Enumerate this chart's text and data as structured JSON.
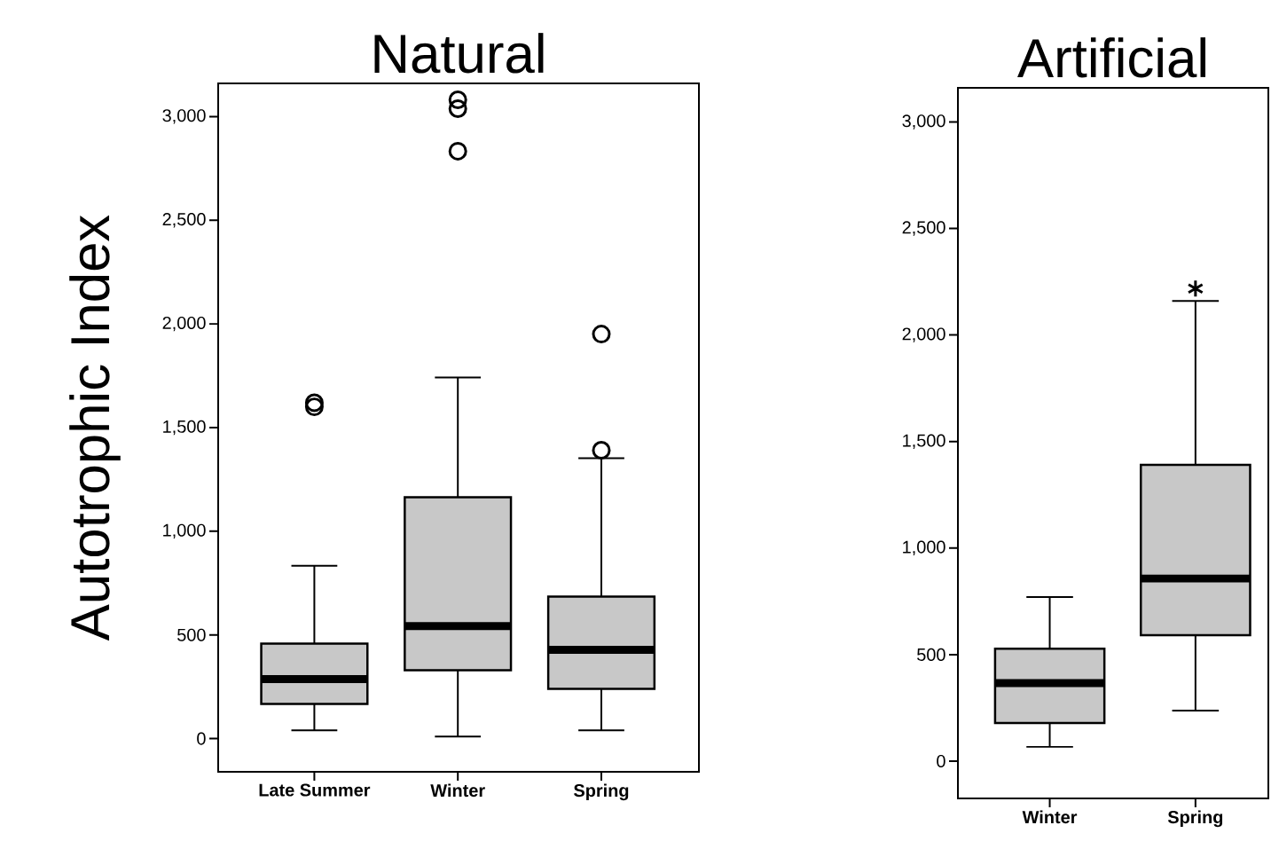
{
  "chart_data": [
    {
      "type": "box",
      "title": "Natural",
      "ylabel": "Autotrophic Index",
      "categories": [
        "Late Summer",
        "Winter",
        "Spring"
      ],
      "color": "#c8c8c8",
      "marker": "circle",
      "ylim": [
        -160,
        3160
      ],
      "yticks": [
        {
          "value": 0,
          "label": "0"
        },
        {
          "value": 500,
          "label": "500"
        },
        {
          "value": 1000,
          "label": "1,000"
        },
        {
          "value": 1500,
          "label": "1,500"
        },
        {
          "value": 2000,
          "label": "2,000"
        },
        {
          "value": 2500,
          "label": "2,500"
        },
        {
          "value": 3000,
          "label": "3,000"
        }
      ],
      "boxes": [
        {
          "low": 40,
          "q1": 167,
          "median": 287,
          "q3": 458,
          "high": 834,
          "outliers": [
            1600,
            1620
          ]
        },
        {
          "low": 10,
          "q1": 330,
          "median": 543,
          "q3": 1164,
          "high": 1742,
          "outliers": [
            2833,
            3038,
            3081
          ]
        },
        {
          "low": 40,
          "q1": 240,
          "median": 428,
          "q3": 685,
          "high": 1352,
          "outliers": [
            1391,
            1951
          ]
        }
      ]
    },
    {
      "type": "box",
      "title": "Artificial",
      "categories": [
        "Winter",
        "Spring"
      ],
      "color": "#c8c8c8",
      "marker": "star",
      "ylim": [
        -175,
        3160
      ],
      "yticks": [
        {
          "value": 0,
          "label": "0"
        },
        {
          "value": 500,
          "label": "500"
        },
        {
          "value": 1000,
          "label": "1,000"
        },
        {
          "value": 1500,
          "label": "1,500"
        },
        {
          "value": 2000,
          "label": "2,000"
        },
        {
          "value": 2500,
          "label": "2,500"
        },
        {
          "value": 3000,
          "label": "3,000"
        }
      ],
      "boxes": [
        {
          "low": 67,
          "q1": 179,
          "median": 366,
          "q3": 528,
          "high": 770
        },
        {
          "low": 237,
          "q1": 591,
          "median": 857,
          "q3": 1390,
          "high": 2160,
          "outliers": [
            2218
          ]
        }
      ]
    }
  ]
}
